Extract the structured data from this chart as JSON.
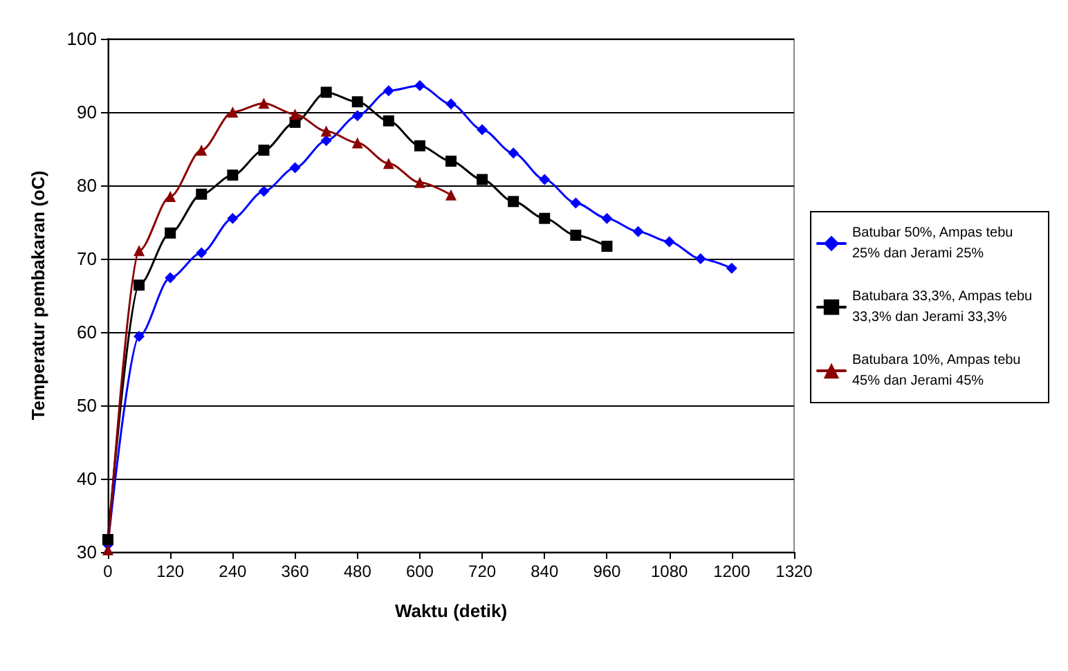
{
  "chart_data": {
    "type": "line",
    "xlabel": "Waktu (detik)",
    "ylabel": "Temperatur pembakaran (oC)",
    "xlim": [
      0,
      1320
    ],
    "xticks": [
      0,
      120,
      240,
      360,
      480,
      600,
      720,
      840,
      960,
      1080,
      1200,
      1320
    ],
    "ylim": [
      30,
      100
    ],
    "yticks": [
      30,
      40,
      50,
      60,
      70,
      80,
      90,
      100
    ],
    "grid": "y",
    "legend": "right",
    "series": [
      {
        "name": "Batubar 50%, Ampas tebu 25% dan Jerami 25%",
        "color": "#0000ff",
        "marker": "diamond",
        "x": [
          0,
          60,
          120,
          180,
          240,
          300,
          360,
          420,
          480,
          540,
          600,
          660,
          720,
          780,
          840,
          900,
          960,
          1020,
          1080,
          1140,
          1200
        ],
        "values": [
          31,
          59.4,
          67.4,
          70.8,
          75.5,
          79.2,
          82.4,
          86.1,
          89.5,
          92.9,
          93.6,
          91.1,
          87.6,
          84.4,
          80.8,
          77.6,
          75.5,
          73.7,
          72.3,
          70.0,
          68.7
        ]
      },
      {
        "name": "Batubara 33,3%, Ampas tebu 33,3% dan Jerami 33,3%",
        "color": "#000000",
        "marker": "square",
        "x": [
          0,
          60,
          120,
          180,
          240,
          300,
          360,
          420,
          480,
          540,
          600,
          660,
          720,
          780,
          840,
          900,
          960
        ],
        "values": [
          31.7,
          66.4,
          73.5,
          78.8,
          81.4,
          84.8,
          88.6,
          92.7,
          91.4,
          88.8,
          85.4,
          83.3,
          80.8,
          77.8,
          75.5,
          73.2,
          71.7
        ]
      },
      {
        "name": "Batubara 10%, Ampas tebu 45% dan Jerami 45%",
        "color": "#8b0000",
        "marker": "triangle",
        "x": [
          0,
          60,
          120,
          180,
          240,
          300,
          360,
          420,
          480,
          540,
          600,
          660
        ],
        "values": [
          30.3,
          71.1,
          78.5,
          84.8,
          90.0,
          91.2,
          89.7,
          87.4,
          85.8,
          83.0,
          80.4,
          78.7
        ]
      }
    ]
  }
}
